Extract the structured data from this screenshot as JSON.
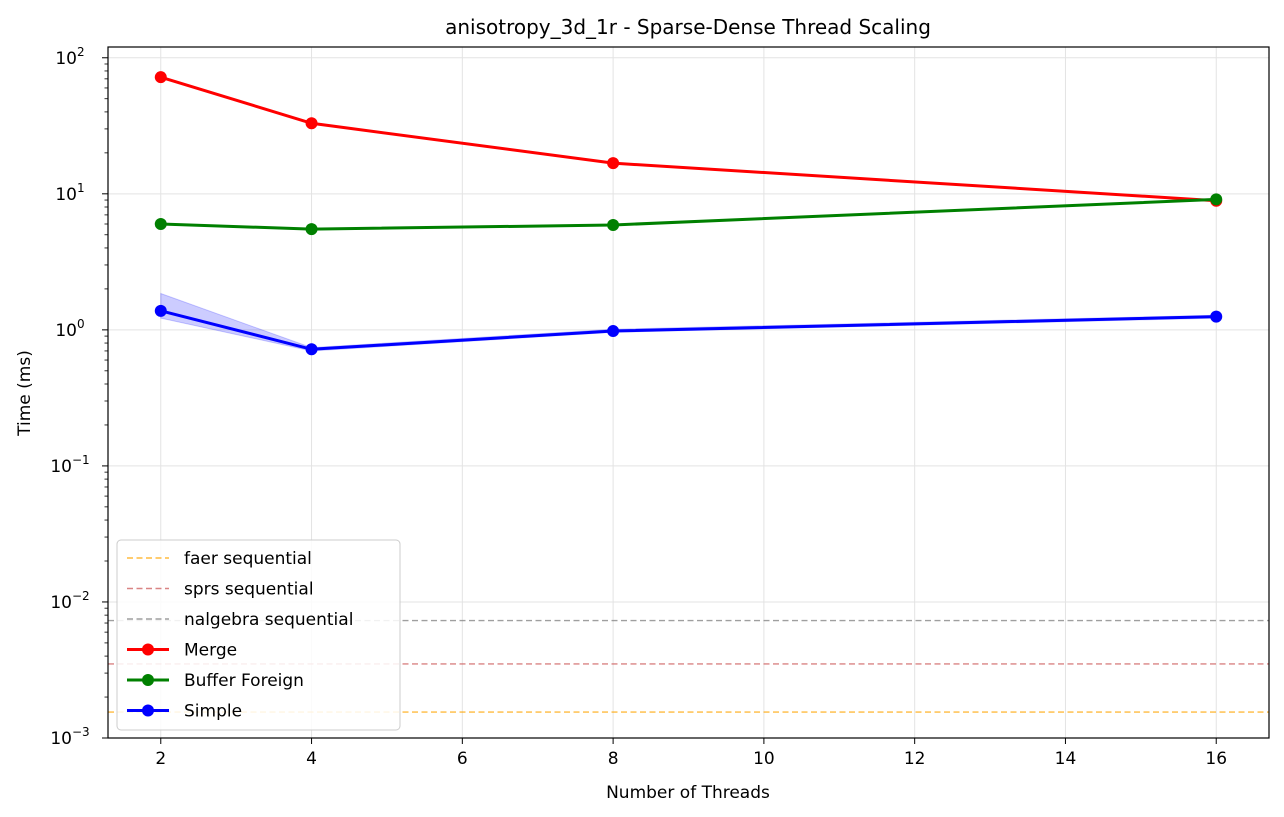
{
  "chart_data": {
    "type": "line",
    "title": "anisotropy_3d_1r - Sparse-Dense Thread Scaling",
    "xlabel": "Number of Threads",
    "ylabel": "Time (ms)",
    "xlim": [
      1.3,
      16.7
    ],
    "ylim": [
      0.001,
      120
    ],
    "yscale": "log",
    "grid": true,
    "legend_position": "lower-left",
    "x_ticks": [
      2,
      4,
      6,
      8,
      10,
      12,
      14,
      16
    ],
    "y_ticks": [
      {
        "value": 0.001,
        "base": "10",
        "exp": "−3"
      },
      {
        "value": 0.01,
        "base": "10",
        "exp": "−2"
      },
      {
        "value": 0.1,
        "base": "10",
        "exp": "−1"
      },
      {
        "value": 1,
        "base": "10",
        "exp": "0"
      },
      {
        "value": 10,
        "base": "10",
        "exp": "1"
      },
      {
        "value": 100,
        "base": "10",
        "exp": "2"
      }
    ],
    "reference_lines": [
      {
        "name": "faer sequential",
        "value": 0.00155,
        "color": "#ffa500"
      },
      {
        "name": "sprs sequential",
        "value": 0.0035,
        "color": "#cd5c5c"
      },
      {
        "name": "nalgebra sequential",
        "value": 0.0073,
        "color": "#808080"
      }
    ],
    "series": [
      {
        "name": "Merge",
        "color": "#ff0000",
        "x": [
          2,
          4,
          8,
          16
        ],
        "y": [
          72,
          33,
          16.8,
          8.9
        ]
      },
      {
        "name": "Buffer Foreign",
        "color": "#008000",
        "x": [
          2,
          4,
          8,
          16
        ],
        "y": [
          6.0,
          5.5,
          5.9,
          9.1
        ]
      },
      {
        "name": "Simple",
        "color": "#0000ff",
        "x": [
          2,
          4,
          8,
          16
        ],
        "y": [
          1.38,
          0.72,
          0.98,
          1.25
        ],
        "band_low": [
          1.22,
          0.7,
          0.96,
          1.22
        ],
        "band_high": [
          1.85,
          0.74,
          1.01,
          1.28
        ]
      }
    ]
  }
}
